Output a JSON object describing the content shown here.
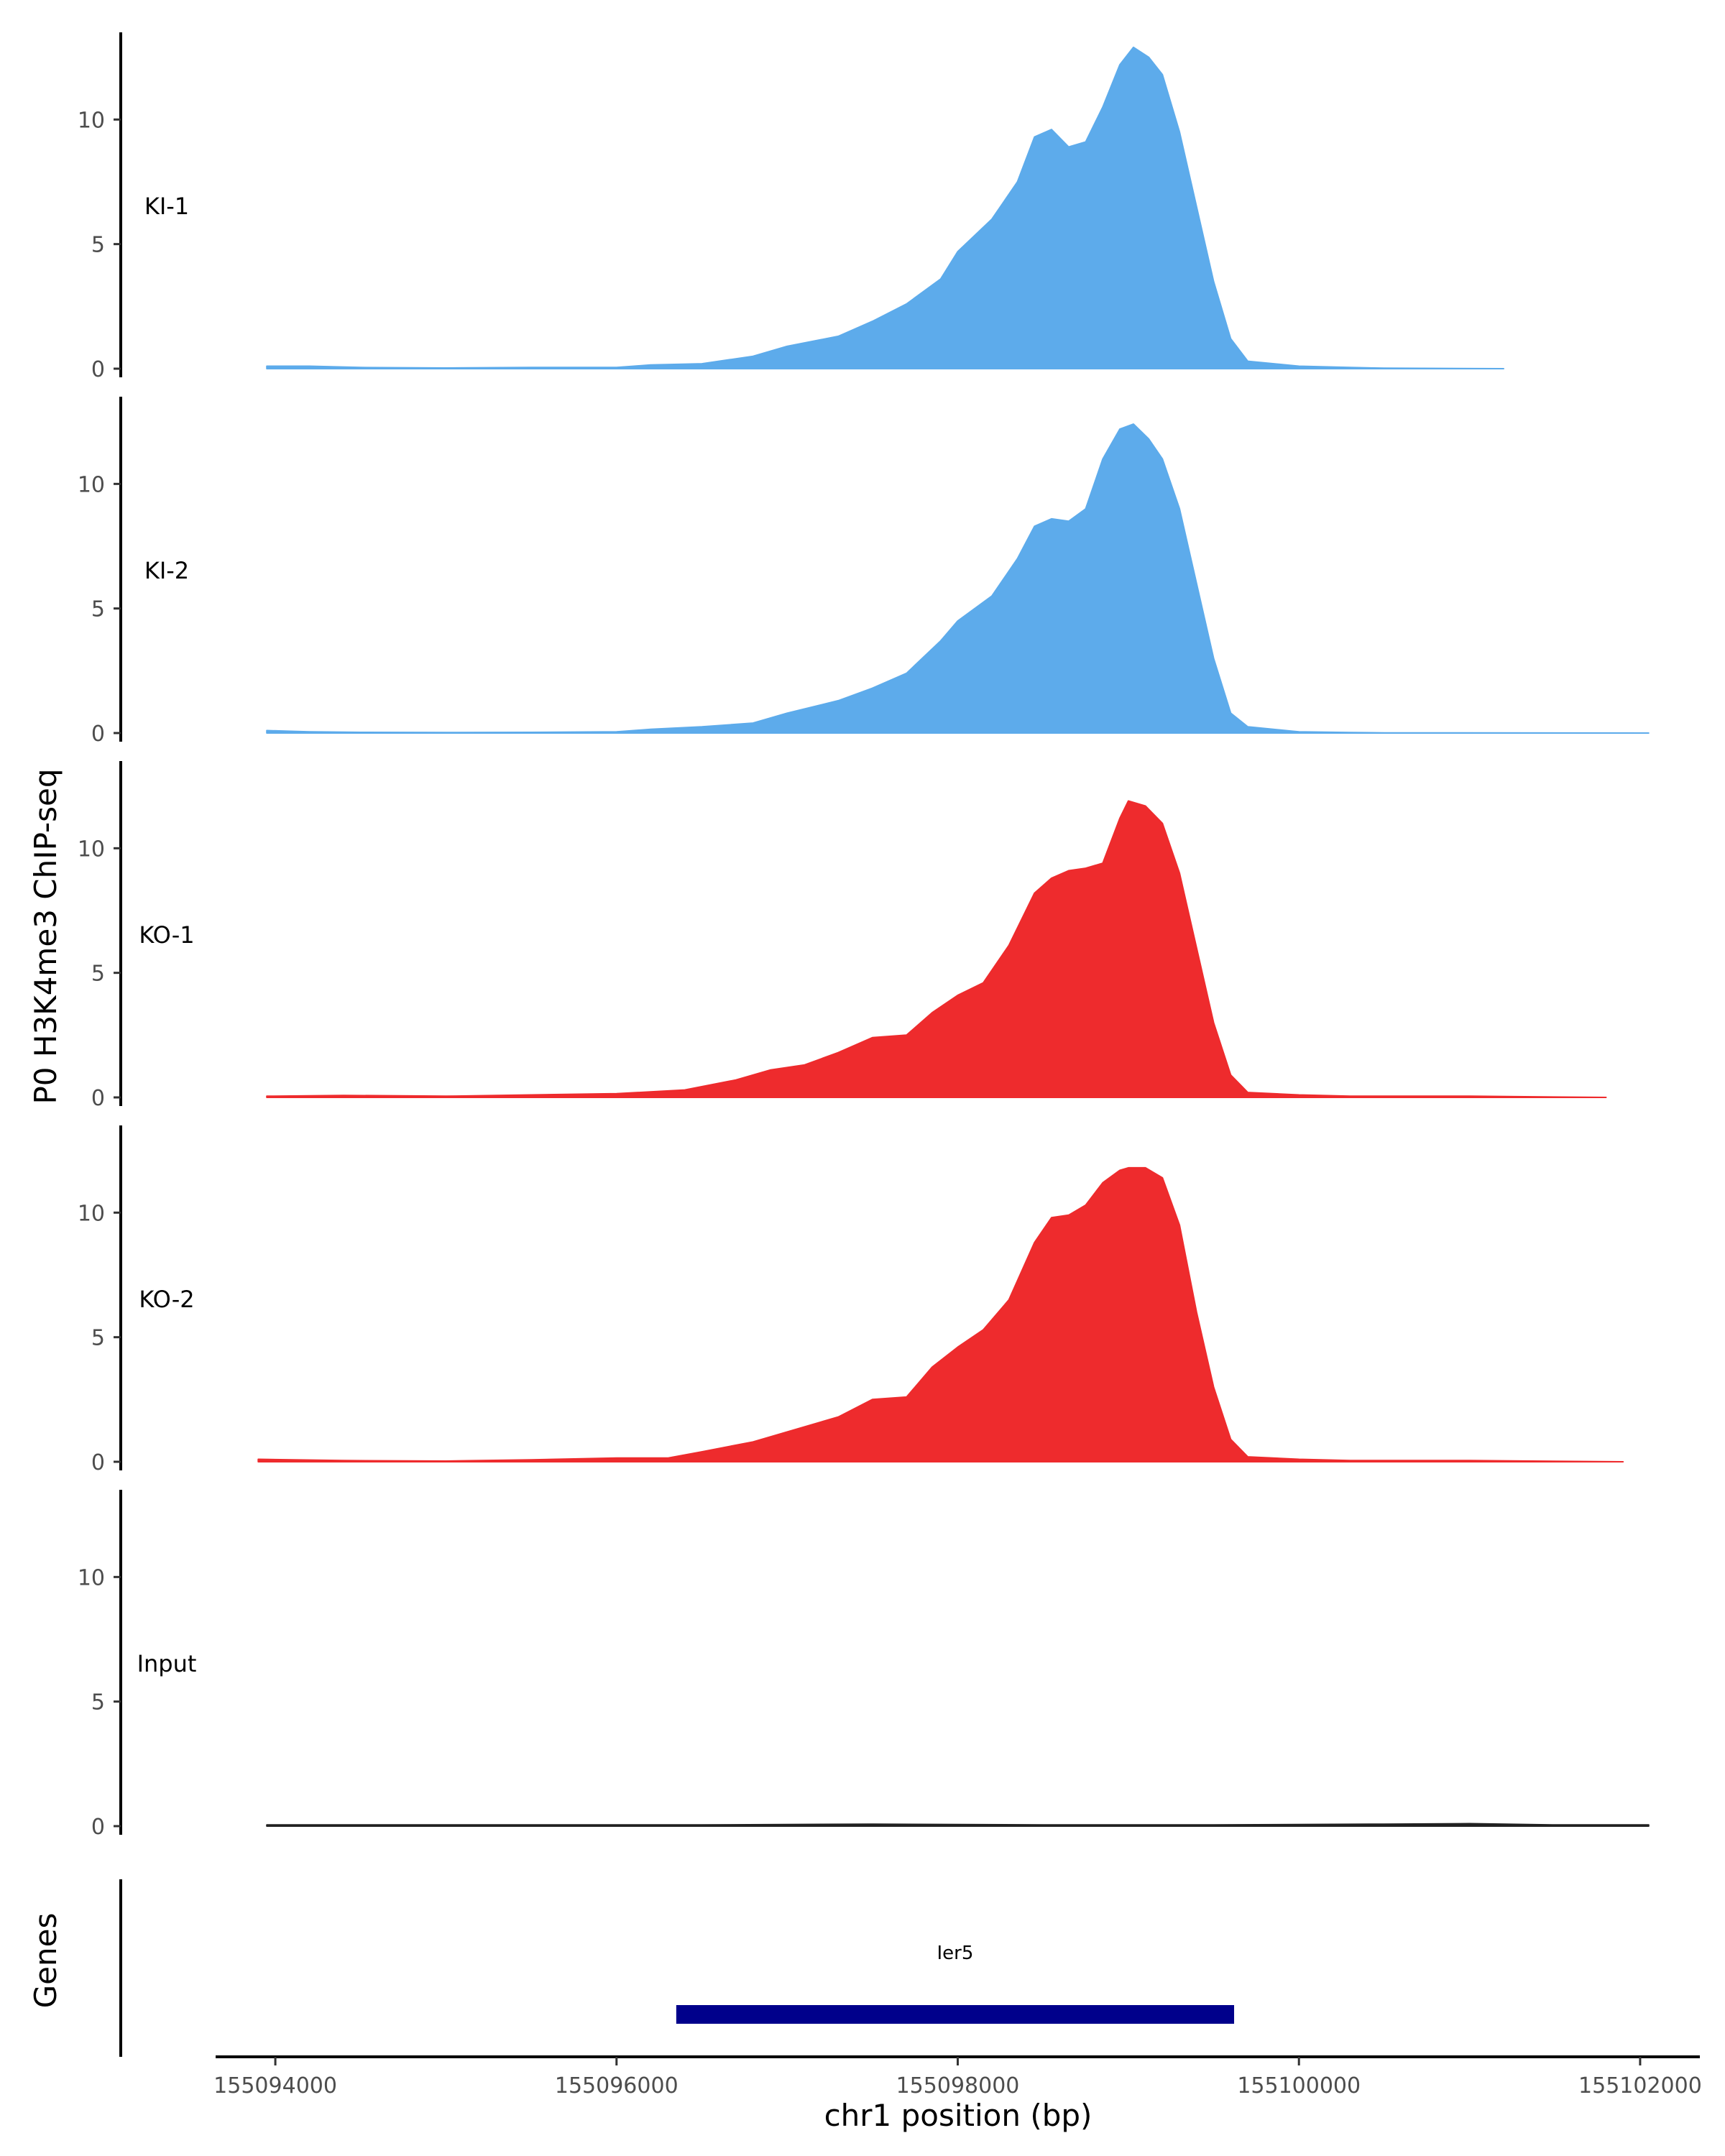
{
  "chart_data": {
    "type": "area",
    "title": "",
    "ylabel_tracks": "P0 H3K4me3 ChIP-seq",
    "ylabel_genes": "Genes",
    "xlabel": "chr1 position (bp)",
    "xlim": [
      155093650,
      155102350
    ],
    "ylim": [
      0,
      13.5
    ],
    "x_ticks": [
      155094000,
      155096000,
      155098000,
      155100000,
      155102000
    ],
    "x_tick_labels": [
      "155094000",
      "155096000",
      "155098000",
      "155100000",
      "155102000"
    ],
    "y_ticks": [
      0,
      5,
      10
    ],
    "y_tick_labels": [
      "0",
      "5",
      "10"
    ],
    "grid": false,
    "colors": {
      "KI": "#5dabeb",
      "KO": "#ee2b2d",
      "Input": "#222222",
      "gene": "#00008b"
    },
    "series": [
      {
        "name": "KI-1",
        "color": "#5dabeb",
        "x": [
          155093950,
          155094200,
          155094500,
          155095000,
          155095500,
          155096000,
          155096200,
          155096500,
          155096800,
          155097000,
          155097300,
          155097500,
          155097700,
          155097900,
          155098000,
          155098200,
          155098350,
          155098450,
          155098550,
          155098650,
          155098750,
          155098850,
          155098950,
          155099030,
          155099120,
          155099200,
          155099300,
          155099400,
          155099500,
          155099600,
          155099700,
          155100000,
          155100300,
          155100500,
          155101200
        ],
        "y": [
          0.1,
          0.1,
          0.05,
          0.03,
          0.05,
          0.05,
          0.15,
          0.2,
          0.5,
          0.9,
          1.3,
          1.9,
          2.6,
          3.6,
          4.7,
          6.0,
          7.5,
          9.3,
          9.6,
          8.9,
          9.1,
          10.5,
          12.2,
          12.9,
          12.5,
          11.8,
          9.5,
          6.5,
          3.5,
          1.2,
          0.3,
          0.1,
          0.05,
          0.02,
          0.0
        ]
      },
      {
        "name": "KI-2",
        "color": "#5dabeb",
        "x": [
          155093950,
          155094200,
          155094500,
          155095000,
          155095500,
          155096000,
          155096200,
          155096500,
          155096800,
          155097000,
          155097300,
          155097500,
          155097700,
          155097900,
          155098000,
          155098200,
          155098350,
          155098450,
          155098550,
          155098650,
          155098750,
          155098850,
          155098950,
          155099030,
          155099120,
          155099200,
          155099300,
          155099400,
          155099500,
          155099600,
          155099700,
          155100000,
          155100300,
          155100500,
          155102050
        ],
        "y": [
          0.1,
          0.05,
          0.03,
          0.02,
          0.03,
          0.05,
          0.15,
          0.25,
          0.4,
          0.8,
          1.3,
          1.8,
          2.4,
          3.7,
          4.5,
          5.5,
          7.0,
          8.3,
          8.6,
          8.5,
          9.0,
          11.0,
          12.2,
          12.4,
          11.8,
          11.0,
          9.0,
          6.0,
          3.0,
          0.8,
          0.25,
          0.05,
          0.02,
          0.01,
          0.0
        ]
      },
      {
        "name": "KO-1",
        "color": "#ee2b2d",
        "x": [
          155093950,
          155094400,
          155095000,
          155095500,
          155096000,
          155096400,
          155096700,
          155096900,
          155097100,
          155097300,
          155097500,
          155097700,
          155097850,
          155098000,
          155098150,
          155098300,
          155098450,
          155098550,
          155098650,
          155098750,
          155098850,
          155098950,
          155099000,
          155099100,
          155099200,
          155099300,
          155099400,
          155099500,
          155099600,
          155099700,
          155100000,
          155100300,
          155101000,
          155101800
        ],
        "y": [
          0.05,
          0.08,
          0.05,
          0.1,
          0.15,
          0.3,
          0.7,
          1.1,
          1.3,
          1.8,
          2.4,
          2.5,
          3.4,
          4.1,
          4.6,
          6.1,
          8.2,
          8.8,
          9.1,
          9.2,
          9.4,
          11.2,
          11.9,
          11.7,
          11.0,
          9.0,
          6.0,
          3.0,
          0.9,
          0.2,
          0.1,
          0.05,
          0.05,
          0.0
        ]
      },
      {
        "name": "KO-2",
        "color": "#ee2b2d",
        "x": [
          155093900,
          155094400,
          155095000,
          155095500,
          155096000,
          155096300,
          155096500,
          155096800,
          155097000,
          155097300,
          155097500,
          155097700,
          155097850,
          155098000,
          155098150,
          155098300,
          155098450,
          155098550,
          155098650,
          155098750,
          155098850,
          155098950,
          155099000,
          155099100,
          155099200,
          155099300,
          155099400,
          155099500,
          155099600,
          155099700,
          155100000,
          155100300,
          155101000,
          155101900
        ],
        "y": [
          0.1,
          0.05,
          0.03,
          0.08,
          0.15,
          0.15,
          0.4,
          0.8,
          1.2,
          1.8,
          2.5,
          2.6,
          3.8,
          4.6,
          5.3,
          6.5,
          8.8,
          9.8,
          9.9,
          10.3,
          11.2,
          11.7,
          11.8,
          11.8,
          11.4,
          9.5,
          6.0,
          3.0,
          0.9,
          0.2,
          0.1,
          0.05,
          0.05,
          0.0
        ]
      },
      {
        "name": "Input",
        "color": "#222222",
        "x": [
          155093950,
          155094500,
          155095500,
          155096500,
          155097500,
          155098500,
          155099500,
          155100500,
          155101000,
          155101500,
          155102050
        ],
        "y": [
          0.05,
          0.05,
          0.05,
          0.05,
          0.08,
          0.05,
          0.05,
          0.08,
          0.1,
          0.05,
          0.05
        ]
      }
    ],
    "genes": [
      {
        "name": "Ier5",
        "start": 155096350,
        "end": 155099620
      }
    ]
  }
}
